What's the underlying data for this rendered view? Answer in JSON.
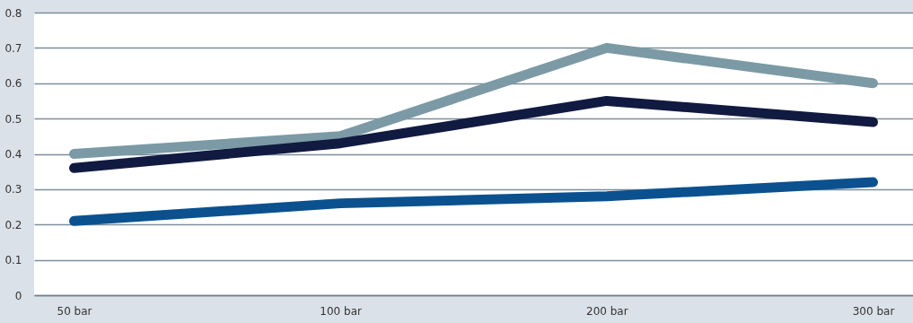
{
  "chart_data": {
    "type": "line",
    "categories": [
      "50 bar",
      "100 bar",
      "200 bar",
      "300 bar"
    ],
    "series": [
      {
        "color": "#7b9aa5",
        "values": [
          0.4,
          0.45,
          0.7,
          0.6
        ]
      },
      {
        "color": "#111a40",
        "values": [
          0.36,
          0.43,
          0.55,
          0.49
        ]
      },
      {
        "color": "#0b518f",
        "values": [
          0.21,
          0.26,
          0.28,
          0.32
        ]
      }
    ],
    "ylim": [
      0,
      0.8
    ],
    "yticks": [
      0,
      0.1,
      0.2,
      0.3,
      0.4,
      0.5,
      0.6,
      0.7,
      0.8
    ],
    "grid": "y",
    "legend": false,
    "marker": "none",
    "line_style": "solid"
  }
}
